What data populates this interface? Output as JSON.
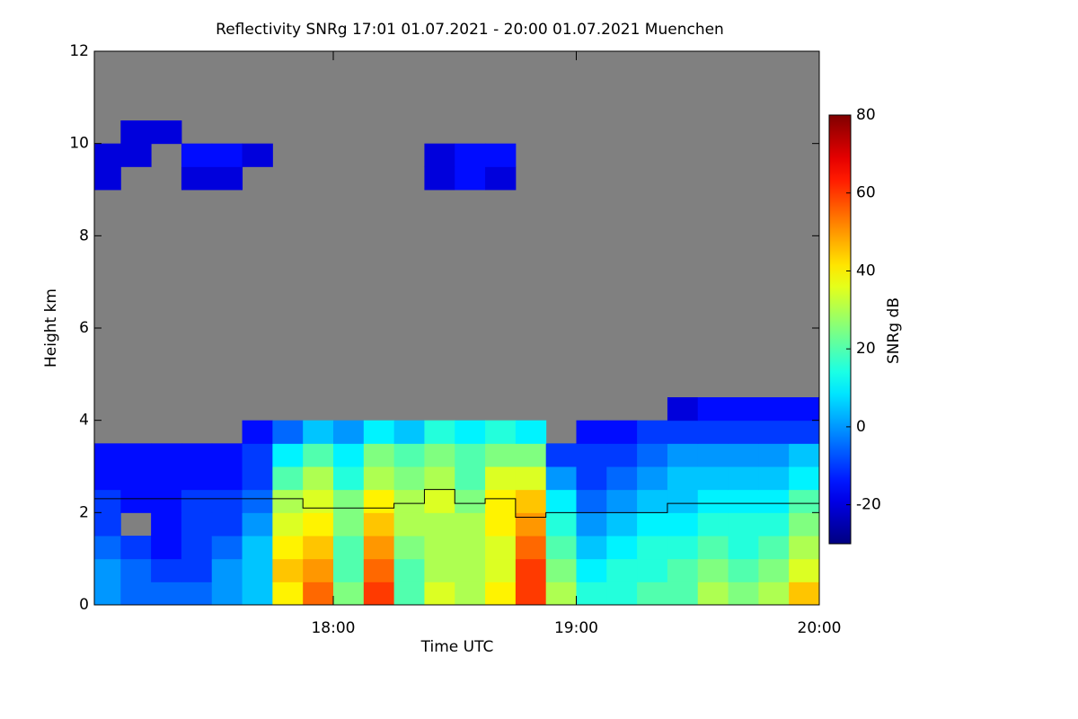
{
  "chart_data": {
    "type": "heatmap",
    "title": "Reflectivity SNRg   17:01 01.07.2021 - 20:00 01.07.2021 Muenchen",
    "x_label": "Time UTC",
    "y_label": "Height km",
    "colorbar_label": "SNRg dB",
    "background": "#808080",
    "colormap": "jet",
    "xlim": [
      17.0167,
      20.0
    ],
    "xticks": [
      {
        "value": 18,
        "label": "18:00"
      },
      {
        "value": 19,
        "label": "19:00"
      },
      {
        "value": 20,
        "label": "20:00"
      }
    ],
    "ylim": [
      0,
      12
    ],
    "yticks": [
      0,
      2,
      4,
      6,
      8,
      10,
      12
    ],
    "zlim": [
      -30,
      80
    ],
    "zticks": [
      -20,
      0,
      20,
      40,
      60,
      80
    ],
    "xbins": [
      17.0167,
      17.125,
      17.25,
      17.375,
      17.5,
      17.625,
      17.75,
      17.875,
      18.0,
      18.125,
      18.25,
      18.375,
      18.5,
      18.625,
      18.75,
      18.875,
      19.0,
      19.125,
      19.25,
      19.375,
      19.5,
      19.625,
      19.75,
      19.875,
      20.0
    ],
    "ybins": [
      0,
      0.5,
      1,
      1.5,
      2,
      2.5,
      3,
      3.5,
      4,
      4.5,
      9,
      9.5,
      10,
      10.5
    ],
    "z": [
      [
        0,
        -5,
        -5,
        -5,
        0,
        5,
        40,
        55,
        25,
        60,
        20,
        35,
        30,
        40,
        60,
        30,
        15,
        15,
        20,
        20,
        30,
        25,
        30,
        45
      ],
      [
        0,
        -5,
        -10,
        -10,
        0,
        5,
        45,
        50,
        20,
        55,
        20,
        30,
        30,
        35,
        60,
        25,
        10,
        15,
        15,
        20,
        25,
        20,
        25,
        35
      ],
      [
        -5,
        -10,
        -15,
        -10,
        -5,
        5,
        40,
        45,
        20,
        50,
        25,
        30,
        30,
        35,
        55,
        20,
        5,
        10,
        15,
        15,
        20,
        15,
        20,
        30
      ],
      [
        -10,
        null,
        -15,
        -10,
        -10,
        0,
        35,
        40,
        25,
        45,
        30,
        30,
        30,
        40,
        50,
        15,
        0,
        5,
        10,
        10,
        15,
        15,
        15,
        25
      ],
      [
        -10,
        -15,
        -15,
        -10,
        -10,
        -5,
        30,
        35,
        25,
        40,
        30,
        35,
        25,
        40,
        45,
        10,
        -5,
        0,
        5,
        5,
        10,
        10,
        10,
        20
      ],
      [
        -15,
        -15,
        -15,
        -15,
        -15,
        -10,
        20,
        30,
        15,
        30,
        25,
        30,
        20,
        35,
        35,
        0,
        -10,
        -5,
        0,
        5,
        5,
        5,
        5,
        10
      ],
      [
        -15,
        -15,
        -15,
        -15,
        -15,
        -10,
        10,
        20,
        10,
        25,
        20,
        25,
        20,
        25,
        25,
        -10,
        -10,
        -10,
        -5,
        0,
        0,
        0,
        0,
        5
      ],
      [
        null,
        null,
        null,
        null,
        null,
        -15,
        -5,
        5,
        0,
        10,
        5,
        15,
        10,
        15,
        10,
        null,
        -15,
        -15,
        -10,
        -10,
        -10,
        -10,
        -10,
        -10
      ],
      [
        null,
        null,
        null,
        null,
        null,
        null,
        null,
        null,
        null,
        null,
        null,
        null,
        null,
        null,
        null,
        null,
        null,
        null,
        null,
        -20,
        -15,
        -15,
        -15,
        -15
      ],
      [
        null,
        null,
        null,
        null,
        null,
        null,
        null,
        null,
        null,
        null,
        null,
        null,
        null,
        null,
        null,
        null,
        null,
        null,
        null,
        null,
        null,
        null,
        null,
        null
      ],
      [
        -20,
        null,
        null,
        -20,
        -20,
        null,
        null,
        null,
        null,
        null,
        null,
        -20,
        -15,
        -20,
        null,
        null,
        null,
        null,
        null,
        null,
        null,
        null,
        null,
        null
      ],
      [
        -20,
        -20,
        null,
        -15,
        -15,
        -20,
        null,
        null,
        null,
        null,
        null,
        -20,
        -15,
        -15,
        null,
        null,
        null,
        null,
        null,
        null,
        null,
        null,
        null,
        null
      ],
      [
        null,
        -20,
        -20,
        null,
        null,
        null,
        null,
        null,
        null,
        null,
        null,
        null,
        null,
        null,
        null,
        null,
        null,
        null,
        null,
        null,
        null,
        null,
        null,
        null
      ]
    ],
    "line": {
      "color": "#000000",
      "values": [
        2.3,
        2.3,
        2.3,
        2.3,
        2.3,
        2.3,
        2.3,
        2.1,
        2.1,
        2.1,
        2.2,
        2.5,
        2.2,
        2.3,
        1.9,
        2.0,
        2.0,
        2.0,
        2.0,
        2.2,
        2.2,
        2.2,
        2.2,
        2.2
      ]
    }
  }
}
